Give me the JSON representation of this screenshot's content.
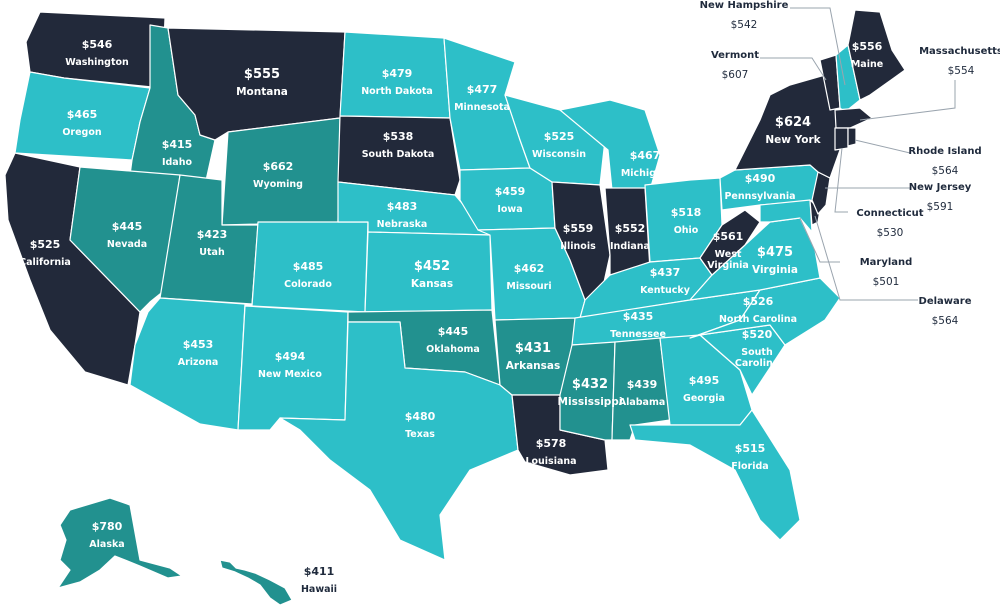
{
  "colors": {
    "dark": "#22293a",
    "teal": "#22918f",
    "light": "#2dbfc8",
    "border": "#ffffff"
  },
  "states": [
    {
      "id": "washington",
      "name": "Washington",
      "value": "$546",
      "tier": "dark"
    },
    {
      "id": "oregon",
      "name": "Oregon",
      "value": "$465",
      "tier": "light"
    },
    {
      "id": "california",
      "name": "California",
      "value": "$525",
      "tier": "dark"
    },
    {
      "id": "idaho",
      "name": "Idaho",
      "value": "$415",
      "tier": "teal"
    },
    {
      "id": "nevada",
      "name": "Nevada",
      "value": "$445",
      "tier": "teal"
    },
    {
      "id": "montana",
      "name": "Montana",
      "value": "$555",
      "tier": "dark"
    },
    {
      "id": "wyoming",
      "name": "Wyoming",
      "value": "$662",
      "tier": "teal"
    },
    {
      "id": "utah",
      "name": "Utah",
      "value": "$423",
      "tier": "teal"
    },
    {
      "id": "arizona",
      "name": "Arizona",
      "value": "$453",
      "tier": "light"
    },
    {
      "id": "colorado",
      "name": "Colorado",
      "value": "$485",
      "tier": "light"
    },
    {
      "id": "new-mexico",
      "name": "New Mexico",
      "value": "$494",
      "tier": "light"
    },
    {
      "id": "north-dakota",
      "name": "North Dakota",
      "value": "$479",
      "tier": "light"
    },
    {
      "id": "south-dakota",
      "name": "South Dakota",
      "value": "$538",
      "tier": "dark"
    },
    {
      "id": "nebraska",
      "name": "Nebraska",
      "value": "$483",
      "tier": "light"
    },
    {
      "id": "kansas",
      "name": "Kansas",
      "value": "$452",
      "tier": "light"
    },
    {
      "id": "oklahoma",
      "name": "Oklahoma",
      "value": "$445",
      "tier": "teal"
    },
    {
      "id": "texas",
      "name": "Texas",
      "value": "$480",
      "tier": "light"
    },
    {
      "id": "minnesota",
      "name": "Minnesota",
      "value": "$477",
      "tier": "light"
    },
    {
      "id": "iowa",
      "name": "Iowa",
      "value": "$459",
      "tier": "light"
    },
    {
      "id": "missouri",
      "name": "Missouri",
      "value": "$462",
      "tier": "light"
    },
    {
      "id": "arkansas",
      "name": "Arkansas",
      "value": "$431",
      "tier": "teal"
    },
    {
      "id": "louisiana",
      "name": "Louisiana",
      "value": "$578",
      "tier": "dark"
    },
    {
      "id": "wisconsin",
      "name": "Wisconsin",
      "value": "$525",
      "tier": "light"
    },
    {
      "id": "illinois",
      "name": "Illinois",
      "value": "$559",
      "tier": "dark"
    },
    {
      "id": "michigan",
      "name": "Michigan",
      "value": "$467",
      "tier": "light"
    },
    {
      "id": "indiana",
      "name": "Indiana",
      "value": "$552",
      "tier": "dark"
    },
    {
      "id": "ohio",
      "name": "Ohio",
      "value": "$518",
      "tier": "light"
    },
    {
      "id": "kentucky",
      "name": "Kentucky",
      "value": "$437",
      "tier": "light"
    },
    {
      "id": "tennessee",
      "name": "Tennessee",
      "value": "$435",
      "tier": "light"
    },
    {
      "id": "mississippi",
      "name": "Mississippi",
      "value": "$432",
      "tier": "teal"
    },
    {
      "id": "alabama",
      "name": "Alabama",
      "value": "$439",
      "tier": "teal"
    },
    {
      "id": "georgia",
      "name": "Georgia",
      "value": "$495",
      "tier": "light"
    },
    {
      "id": "florida",
      "name": "Florida",
      "value": "$515",
      "tier": "light"
    },
    {
      "id": "south-carolina",
      "name": "South Carolina",
      "value": "$520",
      "tier": "light"
    },
    {
      "id": "north-carolina",
      "name": "North Carolina",
      "value": "$526",
      "tier": "light"
    },
    {
      "id": "virginia",
      "name": "Virginia",
      "value": "$475",
      "tier": "light"
    },
    {
      "id": "west-virginia",
      "name": "West Virginia",
      "value": "$561",
      "tier": "dark"
    },
    {
      "id": "pennsylvania",
      "name": "Pennsylvania",
      "value": "$490",
      "tier": "light"
    },
    {
      "id": "new-york",
      "name": "New York",
      "value": "$624",
      "tier": "dark"
    },
    {
      "id": "maine",
      "name": "Maine",
      "value": "$556",
      "tier": "dark"
    },
    {
      "id": "vermont",
      "name": "Vermont",
      "value": "$607",
      "tier": "dark"
    },
    {
      "id": "new-hampshire",
      "name": "New Hampshire",
      "value": "$542",
      "tier": "light"
    },
    {
      "id": "massachusetts",
      "name": "Massachusetts",
      "value": "$554",
      "tier": "dark"
    },
    {
      "id": "rhode-island",
      "name": "Rhode Island",
      "value": "$564",
      "tier": "dark"
    },
    {
      "id": "connecticut",
      "name": "Connecticut",
      "value": "$530",
      "tier": "dark"
    },
    {
      "id": "new-jersey",
      "name": "New Jersey",
      "value": "$591",
      "tier": "dark"
    },
    {
      "id": "delaware",
      "name": "Delaware",
      "value": "$564",
      "tier": "dark"
    },
    {
      "id": "maryland",
      "name": "Maryland",
      "value": "$501",
      "tier": "light"
    },
    {
      "id": "alaska",
      "name": "Alaska",
      "value": "$780",
      "tier": "teal"
    },
    {
      "id": "hawaii",
      "name": "Hawaii",
      "value": "$411",
      "tier": "teal"
    }
  ]
}
